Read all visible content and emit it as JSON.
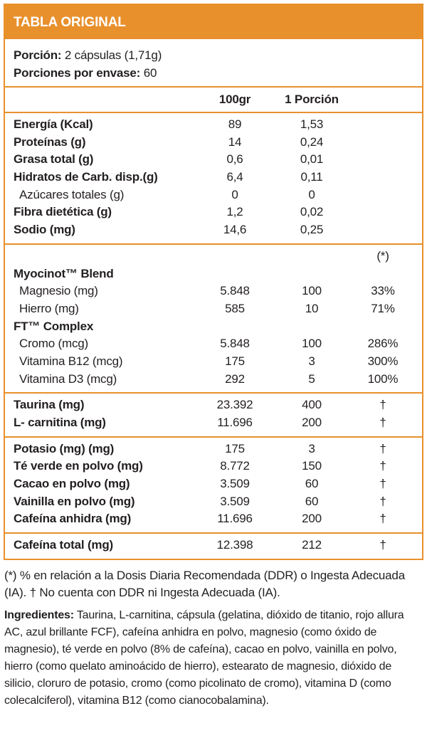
{
  "header": {
    "title": "TABLA ORIGINAL"
  },
  "serving": [
    {
      "label": "Porción:",
      "value": "2 cápsulas (1,71g)"
    },
    {
      "label": "Porciones por envase:",
      "value": "60"
    }
  ],
  "columns": [
    "100gr",
    "1 Porción"
  ],
  "sections": [
    {
      "rows": [
        {
          "label": "Energía (Kcal)",
          "c1": "89",
          "c2": "1,53",
          "style": "bold"
        },
        {
          "label": "Proteínas (g)",
          "c1": "14",
          "c2": "0,24",
          "style": "bold"
        },
        {
          "label": "Grasa total (g)",
          "c1": "0,6",
          "c2": "0,01",
          "style": "bold"
        },
        {
          "label": "Hidratos de Carb. disp.(g)",
          "c1": "6,4",
          "c2": "0,11",
          "style": "bold"
        },
        {
          "label": "Azúcares totales (g)",
          "c1": "0",
          "c2": "0",
          "style": "indent"
        },
        {
          "label": "Fibra dietética (g)",
          "c1": "1,2",
          "c2": "0,02",
          "style": "bold"
        },
        {
          "label": "Sodio (mg)",
          "c1": "14,6",
          "c2": "0,25",
          "style": "bold"
        }
      ]
    },
    {
      "rows": [
        {
          "c3": "(*)"
        },
        {
          "label": "Myocinot™ Blend",
          "style": "bold"
        },
        {
          "label": "Magnesio (mg)",
          "c1": "5.848",
          "c2": "100",
          "c3": "33%",
          "style": "indent"
        },
        {
          "label": "Hierro (mg)",
          "c1": "585",
          "c2": "10",
          "c3": "71%",
          "style": "indent"
        },
        {
          "label": "FT™ Complex",
          "style": "bold"
        },
        {
          "label": "Cromo (mcg)",
          "c1": "5.848",
          "c2": "100",
          "c3": "286%",
          "style": "indent"
        },
        {
          "label": "Vitamina B12 (mcg)",
          "c1": "175",
          "c2": "3",
          "c3": "300%",
          "style": "indent"
        },
        {
          "label": "Vitamina D3 (mcg)",
          "c1": "292",
          "c2": "5",
          "c3": "100%",
          "style": "indent"
        }
      ]
    },
    {
      "rows": [
        {
          "label": "Taurina (mg)",
          "c1": "23.392",
          "c2": "400",
          "c3": "†",
          "style": "bold"
        },
        {
          "label": "L- carnitina (mg)",
          "c1": "11.696",
          "c2": "200",
          "c3": "†",
          "style": "bold"
        }
      ]
    },
    {
      "rows": [
        {
          "label": "Potasio (mg) (mg)",
          "c1": "175",
          "c2": "3",
          "c3": "†",
          "style": "bold"
        },
        {
          "label": "Té verde en polvo (mg)",
          "c1": "8.772",
          "c2": "150",
          "c3": "†",
          "style": "bold"
        },
        {
          "label": "Cacao en polvo (mg)",
          "c1": "3.509",
          "c2": "60",
          "c3": "†",
          "style": "bold"
        },
        {
          "label": "Vainilla en polvo (mg)",
          "c1": "3.509",
          "c2": "60",
          "c3": "†",
          "style": "bold"
        },
        {
          "label": "Cafeína anhidra (mg)",
          "c1": "11.696",
          "c2": "200",
          "c3": "†",
          "style": "bold"
        }
      ]
    },
    {
      "rows": [
        {
          "label": "Cafeína total (mg)",
          "c1": "12.398",
          "c2": "212",
          "c3": "†",
          "style": "bold"
        }
      ]
    }
  ],
  "footnote": "(*) % en relación a la Dosis Diaria Recomendada (DDR) o Ingesta Adecuada (IA). † No cuenta con DDR ni Ingesta Adecuada (IA).",
  "ingredients": {
    "label": "Ingredientes:",
    "text": "Taurina, L-carnitina, cápsula (gelatina, dióxido de titanio, rojo allura AC, azul brillante FCF), cafeína anhidra en polvo, magnesio (como óxido de magnesio), té verde en polvo (8% de cafeína), cacao en polvo, vainilla en polvo, hierro (como quelato aminoácido de hierro), estearato de magnesio, dióxido de silicio, cloruro de potasio, cromo (como picolinato de cromo), vitamina D (como colecalciferol), vitamina B12 (como cianocobalamina)."
  }
}
